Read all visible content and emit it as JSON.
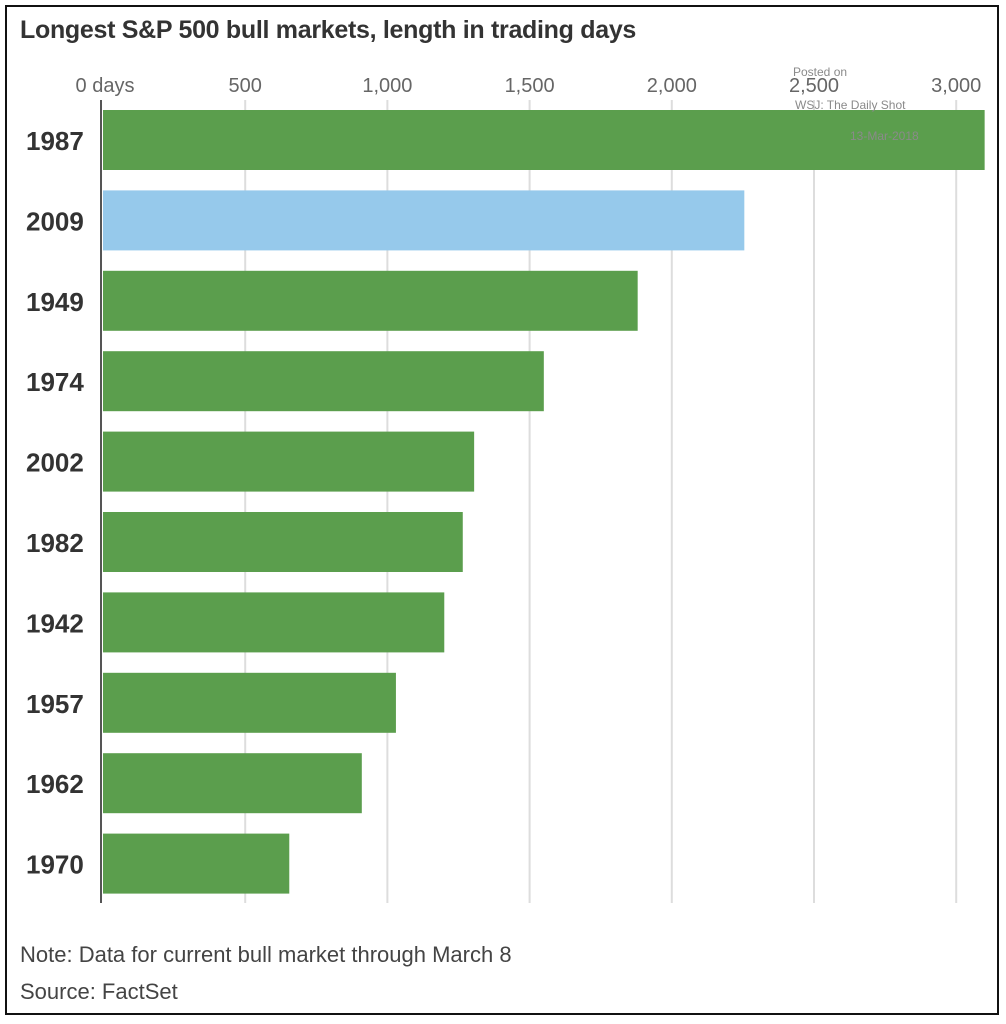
{
  "chart_data": {
    "type": "bar",
    "orientation": "horizontal",
    "title": "Longest S&P 500 bull markets, length in trading days",
    "categories": [
      "1987",
      "2009",
      "1949",
      "1974",
      "2002",
      "1982",
      "1942",
      "1957",
      "1962",
      "1970"
    ],
    "values": [
      3100,
      2255,
      1880,
      1550,
      1305,
      1265,
      1200,
      1030,
      910,
      655
    ],
    "highlight_category": "2009",
    "colors": {
      "default": "#5b9e4d",
      "highlight": "#96c9eb",
      "grid": "#dddddd",
      "axis": "#555555"
    },
    "x_ticks": [
      {
        "value": 0,
        "label": "0 days"
      },
      {
        "value": 500,
        "label": "500"
      },
      {
        "value": 1000,
        "label": "1,000"
      },
      {
        "value": 1500,
        "label": "1,500"
      },
      {
        "value": 2000,
        "label": "2,000"
      },
      {
        "value": 2500,
        "label": "2,500"
      },
      {
        "value": 3000,
        "label": "3,000"
      }
    ],
    "xlim": [
      0,
      3100
    ],
    "grid": true,
    "xlabel": "",
    "ylabel": ""
  },
  "footer": {
    "note": "Note: Data for current bull market through March 8",
    "source": "Source: FactSet"
  },
  "watermark": {
    "line1": "Posted on",
    "line2": "WSJ: The Daily Shot",
    "line3": "13-Mar-2018"
  }
}
